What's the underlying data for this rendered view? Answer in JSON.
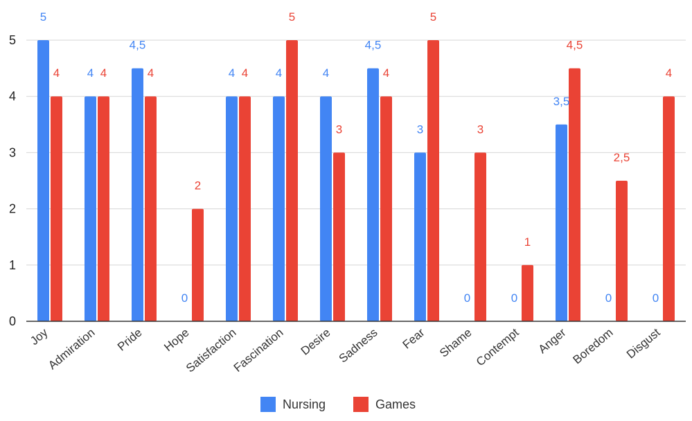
{
  "chart_data": {
    "type": "bar",
    "categories": [
      "Joy",
      "Admiration",
      "Pride",
      "Hope",
      "Satisfaction",
      "Fascination",
      "Desire",
      "Sadness",
      "Fear",
      "Shame",
      "Contempt",
      "Anger",
      "Boredom",
      "Disgust"
    ],
    "series": [
      {
        "name": "Nursing",
        "color": "#4285f4",
        "values": [
          5,
          4,
          4.5,
          0,
          4,
          4,
          4,
          4.5,
          3,
          0,
          0,
          3.5,
          0,
          0
        ],
        "labels": [
          "5",
          "4",
          "4,5",
          "0",
          "4",
          "4",
          "4",
          "4,5",
          "3",
          "0",
          "0",
          "3,5",
          "0",
          "0"
        ]
      },
      {
        "name": "Games",
        "color": "#ea4335",
        "values": [
          4,
          4,
          4,
          2,
          4,
          5,
          3,
          4,
          5,
          3,
          1,
          4.5,
          2.5,
          4
        ],
        "labels": [
          "4",
          "4",
          "4",
          "2",
          "4",
          "5",
          "3",
          "4",
          "5",
          "3",
          "1",
          "4,5",
          "2,5",
          "4"
        ]
      }
    ],
    "y_ticks": [
      "0",
      "1",
      "2",
      "3",
      "4",
      "5"
    ],
    "ylim": [
      0,
      5
    ],
    "grid": true,
    "legend_position": "bottom"
  }
}
